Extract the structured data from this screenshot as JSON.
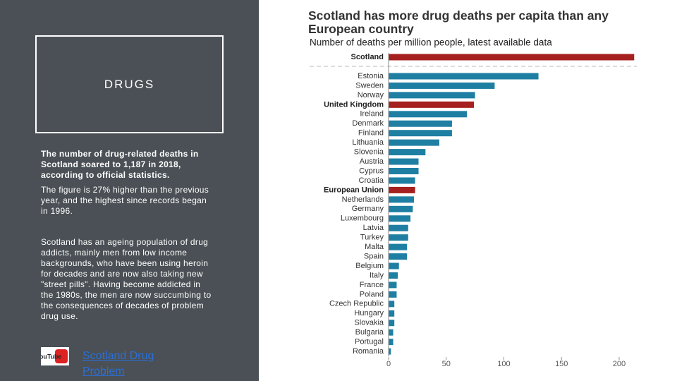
{
  "slide": {
    "box_title": "DRUGS",
    "lead": "The number of drug-related deaths in Scotland soared to 1,187 in 2018, according to official statistics.",
    "para1": "The figure is 27% higher than the previous year, and the highest since records began in 1996.",
    "para2": "Scotland has an ageing population of drug addicts, mainly men from low income backgrounds, who have been using heroin for decades and are now also taking new \"street pills\". Having become addicted in the 1980s, the men are now succumbing to the consequences of decades of problem drug use.",
    "icon_label": "You Tube",
    "link": "Scotland Drug Problem"
  },
  "chart_data": {
    "type": "hbar",
    "title": "Scotland has more drug deaths per capita than any European country",
    "subtitle": "Number of deaths per million people, latest available data",
    "categories": [
      "Scotland",
      "Estonia",
      "Sweden",
      "Norway",
      "United Kingdom",
      "Ireland",
      "Denmark",
      "Finland",
      "Lithuania",
      "Slovenia",
      "Austria",
      "Cyprus",
      "Croatia",
      "European Union",
      "Netherlands",
      "Germany",
      "Luxembourg",
      "Latvia",
      "Turkey",
      "Malta",
      "Spain",
      "Belgium",
      "Italy",
      "France",
      "Poland",
      "Czech Republic",
      "Hungary",
      "Slovakia",
      "Bulgaria",
      "Portugal",
      "Romania"
    ],
    "values": [
      213,
      130,
      92,
      75,
      74,
      68,
      55,
      55,
      44,
      32,
      26,
      26,
      23,
      23,
      22,
      21,
      19,
      17,
      17,
      16,
      16,
      9,
      8,
      7,
      7,
      5,
      5,
      5,
      4,
      4,
      2
    ],
    "color": "#1f7fa3",
    "colors": [
      "#a5201e",
      "#1f7fa3",
      "#1f7fa3",
      "#1f7fa3",
      "#a5201e",
      "#1f7fa3",
      "#1f7fa3",
      "#1f7fa3",
      "#1f7fa3",
      "#1f7fa3",
      "#1f7fa3",
      "#1f7fa3",
      "#1f7fa3",
      "#a5201e",
      "#1f7fa3",
      "#1f7fa3",
      "#1f7fa3",
      "#1f7fa3",
      "#1f7fa3",
      "#1f7fa3",
      "#1f7fa3",
      "#1f7fa3",
      "#1f7fa3",
      "#1f7fa3",
      "#1f7fa3",
      "#1f7fa3",
      "#1f7fa3",
      "#1f7fa3",
      "#1f7fa3",
      "#1f7fa3",
      "#1f7fa3"
    ],
    "xlim": [
      0,
      200
    ],
    "xticks": [
      0,
      50,
      100,
      150,
      200
    ]
  }
}
